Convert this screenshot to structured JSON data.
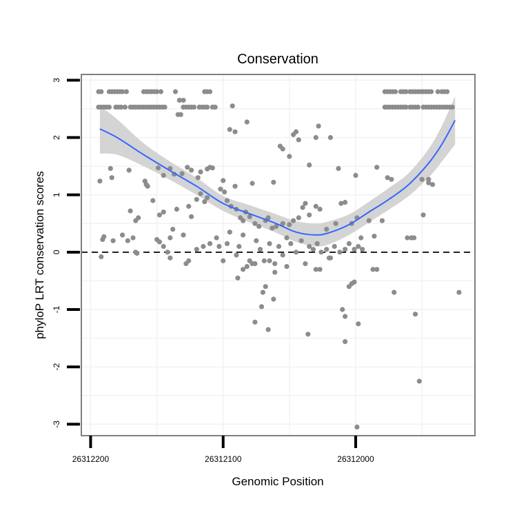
{
  "chart_data": {
    "type": "scatter",
    "title": "Conservation",
    "xlabel": "Genomic Position",
    "ylabel": "phyloP LRT conservation scores",
    "x_reversed": true,
    "xlim": [
      26312207,
      26311910
    ],
    "ylim": [
      -3.2,
      3.1
    ],
    "x_ticks": [
      26312200,
      26312100,
      26312000
    ],
    "y_ticks": [
      -3,
      -2,
      -1,
      0,
      1,
      2,
      3
    ],
    "reference_line": {
      "y": 0,
      "style": "dashed"
    },
    "grid": true,
    "colors": {
      "points": "#8c8c8c",
      "smooth": "#3366ff",
      "ribbon": "#d4d4d4",
      "panel_border": "#7f7f7f",
      "gridline": "#f2f2f2"
    },
    "smooth": {
      "x": [
        26312193,
        26312180,
        26312160,
        26312140,
        26312120,
        26312100,
        26312080,
        26312060,
        26312045,
        26312030,
        26312020,
        26312005,
        26311990,
        26311975,
        26311960,
        26311945,
        26311935,
        26311925
      ],
      "y": [
        2.15,
        2.0,
        1.7,
        1.42,
        1.15,
        0.85,
        0.67,
        0.5,
        0.35,
        0.3,
        0.34,
        0.48,
        0.7,
        0.92,
        1.18,
        1.55,
        1.88,
        2.3
      ],
      "lower": [
        1.72,
        1.7,
        1.5,
        1.26,
        1.0,
        0.72,
        0.52,
        0.34,
        0.18,
        0.1,
        0.14,
        0.3,
        0.52,
        0.74,
        0.98,
        1.3,
        1.58,
        1.88
      ],
      "upper": [
        2.55,
        2.32,
        1.9,
        1.58,
        1.3,
        0.98,
        0.82,
        0.66,
        0.54,
        0.5,
        0.54,
        0.66,
        0.88,
        1.12,
        1.38,
        1.8,
        2.2,
        2.72
      ]
    },
    "points": [
      [
        26312194,
        2.8
      ],
      [
        26312192,
        2.8
      ],
      [
        26312186,
        2.8
      ],
      [
        26312184,
        2.8
      ],
      [
        26312182,
        2.8
      ],
      [
        26312180,
        2.8
      ],
      [
        26312178,
        2.8
      ],
      [
        26312176,
        2.8
      ],
      [
        26312173,
        2.8
      ],
      [
        26312160,
        2.8
      ],
      [
        26312158,
        2.8
      ],
      [
        26312156,
        2.8
      ],
      [
        26312154,
        2.8
      ],
      [
        26312152,
        2.8
      ],
      [
        26312150,
        2.8
      ],
      [
        26312147,
        2.8
      ],
      [
        26312136,
        2.8
      ],
      [
        26312114,
        2.8
      ],
      [
        26312112,
        2.8
      ],
      [
        26312110,
        2.8
      ],
      [
        26311978,
        2.8
      ],
      [
        26311976,
        2.8
      ],
      [
        26311974,
        2.8
      ],
      [
        26311972,
        2.8
      ],
      [
        26311970,
        2.8
      ],
      [
        26311966,
        2.8
      ],
      [
        26311964,
        2.8
      ],
      [
        26311962,
        2.8
      ],
      [
        26311959,
        2.8
      ],
      [
        26311957,
        2.8
      ],
      [
        26311955,
        2.8
      ],
      [
        26311953,
        2.8
      ],
      [
        26311951,
        2.8
      ],
      [
        26311949,
        2.8
      ],
      [
        26311947,
        2.8
      ],
      [
        26311945,
        2.8
      ],
      [
        26311943,
        2.8
      ],
      [
        26311938,
        2.8
      ],
      [
        26311935,
        2.8
      ],
      [
        26311933,
        2.8
      ],
      [
        26311931,
        2.8
      ],
      [
        26312194,
        2.53
      ],
      [
        26312192,
        2.53
      ],
      [
        26312190,
        2.53
      ],
      [
        26312188,
        2.53
      ],
      [
        26312186,
        2.53
      ],
      [
        26312181,
        2.53
      ],
      [
        26312179,
        2.53
      ],
      [
        26312177,
        2.53
      ],
      [
        26312174,
        2.53
      ],
      [
        26312170,
        2.53
      ],
      [
        26312168,
        2.53
      ],
      [
        26312166,
        2.53
      ],
      [
        26312164,
        2.53
      ],
      [
        26312162,
        2.53
      ],
      [
        26312160,
        2.53
      ],
      [
        26312158,
        2.53
      ],
      [
        26312156,
        2.53
      ],
      [
        26312154,
        2.53
      ],
      [
        26312152,
        2.53
      ],
      [
        26312150,
        2.53
      ],
      [
        26312148,
        2.53
      ],
      [
        26312146,
        2.53
      ],
      [
        26312144,
        2.53
      ],
      [
        26312130,
        2.53
      ],
      [
        26312128,
        2.53
      ],
      [
        26312126,
        2.53
      ],
      [
        26312124,
        2.53
      ],
      [
        26312122,
        2.53
      ],
      [
        26312118,
        2.53
      ],
      [
        26312116,
        2.53
      ],
      [
        26312114,
        2.53
      ],
      [
        26312112,
        2.53
      ],
      [
        26312108,
        2.53
      ],
      [
        26312106,
        2.53
      ],
      [
        26311978,
        2.53
      ],
      [
        26311976,
        2.53
      ],
      [
        26311974,
        2.53
      ],
      [
        26311972,
        2.53
      ],
      [
        26311970,
        2.53
      ],
      [
        26311968,
        2.53
      ],
      [
        26311966,
        2.53
      ],
      [
        26311964,
        2.53
      ],
      [
        26311962,
        2.53
      ],
      [
        26311959,
        2.53
      ],
      [
        26311957,
        2.53
      ],
      [
        26311955,
        2.53
      ],
      [
        26311953,
        2.53
      ],
      [
        26311949,
        2.53
      ],
      [
        26311947,
        2.53
      ],
      [
        26311945,
        2.53
      ],
      [
        26311943,
        2.53
      ],
      [
        26311941,
        2.53
      ],
      [
        26311939,
        2.53
      ],
      [
        26311937,
        2.53
      ],
      [
        26311935,
        2.53
      ],
      [
        26311933,
        2.53
      ],
      [
        26311931,
        2.53
      ],
      [
        26311929,
        2.53
      ],
      [
        26311927,
        2.53
      ],
      [
        26312133,
        2.65
      ],
      [
        26312130,
        2.65
      ],
      [
        26312134,
        2.4
      ],
      [
        26312132,
        2.4
      ],
      [
        26312093,
        2.55
      ],
      [
        26312082,
        2.27
      ],
      [
        26312095,
        2.14
      ],
      [
        26312091,
        2.1
      ],
      [
        26312045,
        2.1
      ],
      [
        26312047,
        2.05
      ],
      [
        26312043,
        1.96
      ],
      [
        26312028,
        2.2
      ],
      [
        26312030,
        2.0
      ],
      [
        26312019,
        2.0
      ],
      [
        26312057,
        1.85
      ],
      [
        26312055,
        1.8
      ],
      [
        26312050,
        1.67
      ],
      [
        26312035,
        1.52
      ],
      [
        26312013,
        1.46
      ],
      [
        26311984,
        1.48
      ],
      [
        26312000,
        1.34
      ],
      [
        26311976,
        1.3
      ],
      [
        26311973,
        1.27
      ],
      [
        26311950,
        1.27
      ],
      [
        26311945,
        1.21
      ],
      [
        26311942,
        1.18
      ],
      [
        26312193,
        1.24
      ],
      [
        26312185,
        1.46
      ],
      [
        26312184,
        1.3
      ],
      [
        26312171,
        1.43
      ],
      [
        26312159,
        1.24
      ],
      [
        26312157,
        1.15
      ],
      [
        26312149,
        1.47
      ],
      [
        26312145,
        1.34
      ],
      [
        26312140,
        1.46
      ],
      [
        26312137,
        1.36
      ],
      [
        26312131,
        1.37
      ],
      [
        26312127,
        1.48
      ],
      [
        26312124,
        1.43
      ],
      [
        26312119,
        1.3
      ],
      [
        26312117,
        1.4
      ],
      [
        26312112,
        1.45
      ],
      [
        26312110,
        1.48
      ],
      [
        26312108,
        1.47
      ],
      [
        26312100,
        1.25
      ],
      [
        26312091,
        1.15
      ],
      [
        26312078,
        1.2
      ],
      [
        26312062,
        1.22
      ],
      [
        26312191,
        0.22
      ],
      [
        26312190,
        0.27
      ],
      [
        26312183,
        0.2
      ],
      [
        26312170,
        0.72
      ],
      [
        26312168,
        0.25
      ],
      [
        26312166,
        0.55
      ],
      [
        26312164,
        0.6
      ],
      [
        26312158,
        1.18
      ],
      [
        26312153,
        0.9
      ],
      [
        26312148,
        0.65
      ],
      [
        26312145,
        0.7
      ],
      [
        26312140,
        0.25
      ],
      [
        26312138,
        0.4
      ],
      [
        26312135,
        0.75
      ],
      [
        26312130,
        0.3
      ],
      [
        26312126,
        0.8
      ],
      [
        26312124,
        0.62
      ],
      [
        26312120,
        0.92
      ],
      [
        26312117,
        1.02
      ],
      [
        26312114,
        0.88
      ],
      [
        26312112,
        0.95
      ],
      [
        26312102,
        1.1
      ],
      [
        26312099,
        1.05
      ],
      [
        26312097,
        0.9
      ],
      [
        26312094,
        0.8
      ],
      [
        26312090,
        0.75
      ],
      [
        26312087,
        0.6
      ],
      [
        26312085,
        0.55
      ],
      [
        26312083,
        0.7
      ],
      [
        26312080,
        0.62
      ],
      [
        26312076,
        0.5
      ],
      [
        26312073,
        0.45
      ],
      [
        26312068,
        0.55
      ],
      [
        26312066,
        0.6
      ],
      [
        26312063,
        0.42
      ],
      [
        26312060,
        0.45
      ],
      [
        26312055,
        0.5
      ],
      [
        26312050,
        0.48
      ],
      [
        26312047,
        0.55
      ],
      [
        26312043,
        0.6
      ],
      [
        26312040,
        0.78
      ],
      [
        26312038,
        0.85
      ],
      [
        26312035,
        0.65
      ],
      [
        26312030,
        0.8
      ],
      [
        26312027,
        0.75
      ],
      [
        26312022,
        0.4
      ],
      [
        26312015,
        0.5
      ],
      [
        26312011,
        0.85
      ],
      [
        26312008,
        0.87
      ],
      [
        26312003,
        0.5
      ],
      [
        26311999,
        0.6
      ],
      [
        26311996,
        0.25
      ],
      [
        26311990,
        0.55
      ],
      [
        26311986,
        0.28
      ],
      [
        26311980,
        0.55
      ],
      [
        26311961,
        0.25
      ],
      [
        26311958,
        0.25
      ],
      [
        26311956,
        0.25
      ],
      [
        26311949,
        0.65
      ],
      [
        26311945,
        1.27
      ],
      [
        26312192,
        -0.08
      ],
      [
        26312176,
        0.3
      ],
      [
        26312172,
        0.2
      ],
      [
        26312166,
        0.0
      ],
      [
        26312165,
        -0.02
      ],
      [
        26312150,
        0.22
      ],
      [
        26312148,
        0.18
      ],
      [
        26312145,
        0.1
      ],
      [
        26312142,
        0.0
      ],
      [
        26312140,
        -0.1
      ],
      [
        26312128,
        -0.2
      ],
      [
        26312126,
        -0.15
      ],
      [
        26312120,
        0.05
      ],
      [
        26312115,
        0.1
      ],
      [
        26312110,
        0.15
      ],
      [
        26312105,
        0.25
      ],
      [
        26312103,
        0.1
      ],
      [
        26312100,
        -0.15
      ],
      [
        26312097,
        0.15
      ],
      [
        26312095,
        0.35
      ],
      [
        26312090,
        -0.05
      ],
      [
        26312088,
        0.1
      ],
      [
        26312085,
        0.3
      ],
      [
        26312080,
        -0.15
      ],
      [
        26312075,
        0.2
      ],
      [
        26312072,
        0.05
      ],
      [
        26312069,
        -0.15
      ],
      [
        26312065,
        0.15
      ],
      [
        26312061,
        -0.2
      ],
      [
        26312058,
        0.1
      ],
      [
        26312055,
        -0.05
      ],
      [
        26312052,
        0.25
      ],
      [
        26312049,
        0.15
      ],
      [
        26312045,
        0.0
      ],
      [
        26312041,
        0.2
      ],
      [
        26312038,
        -0.2
      ],
      [
        26312035,
        0.1
      ],
      [
        26312032,
        0.05
      ],
      [
        26312029,
        0.15
      ],
      [
        26312026,
        0.0
      ],
      [
        26312022,
        0.05
      ],
      [
        26312019,
        -0.1
      ],
      [
        26312016,
        0.1
      ],
      [
        26312012,
        0.0
      ],
      [
        26312008,
        0.05
      ],
      [
        26312005,
        0.15
      ],
      [
        26312001,
        0.05
      ],
      [
        26311998,
        0.1
      ],
      [
        26311995,
        0.05
      ],
      [
        26312089,
        -0.45
      ],
      [
        26312085,
        -0.3
      ],
      [
        26312082,
        -0.25
      ],
      [
        26312078,
        -0.2
      ],
      [
        26312076,
        -0.2
      ],
      [
        26312070,
        -0.7
      ],
      [
        26312068,
        -0.6
      ],
      [
        26312065,
        -0.15
      ],
      [
        26312061,
        -0.35
      ],
      [
        26312052,
        -0.25
      ],
      [
        26312030,
        -0.3
      ],
      [
        26312027,
        -0.3
      ],
      [
        26312020,
        -0.1
      ],
      [
        26312005,
        -0.6
      ],
      [
        26312003,
        -0.55
      ],
      [
        26312001,
        -0.52
      ],
      [
        26311987,
        -0.3
      ],
      [
        26311984,
        -0.3
      ],
      [
        26311971,
        -0.7
      ],
      [
        26312062,
        -0.82
      ],
      [
        26312071,
        -0.95
      ],
      [
        26312066,
        -1.35
      ],
      [
        26312076,
        -1.22
      ],
      [
        26312036,
        -1.43
      ],
      [
        26312010,
        -1.0
      ],
      [
        26312008,
        -1.12
      ],
      [
        26312008,
        -1.56
      ],
      [
        26311998,
        -1.25
      ],
      [
        26311955,
        -1.08
      ],
      [
        26311952,
        -2.25
      ],
      [
        26311999,
        -3.05
      ],
      [
        26311922,
        -0.7
      ]
    ]
  }
}
